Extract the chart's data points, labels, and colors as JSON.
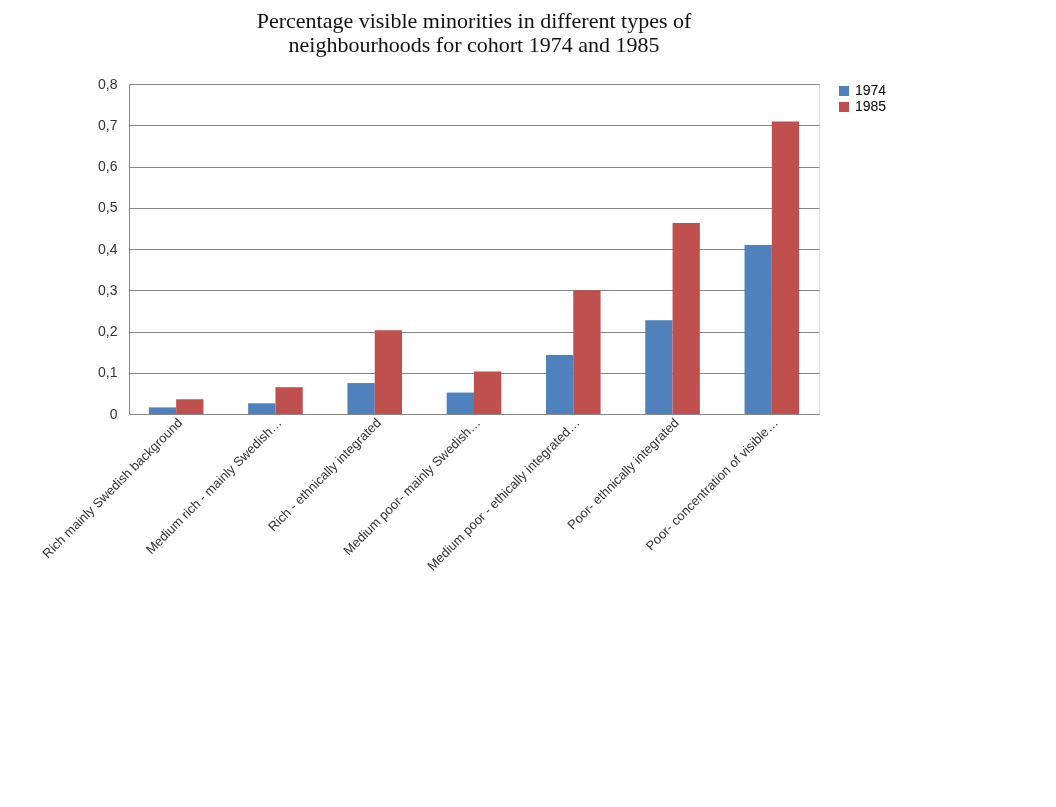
{
  "chart_data": {
    "type": "bar",
    "title": [
      "Percentage visible minorities in different types of",
      "neighbourhoods for cohort 1974 and 1985"
    ],
    "categories": [
      "Rich mainly Swedish background",
      "Medium rich - mainly Swedish…",
      "Rich - ethnically integrated",
      "Medium poor- mainly Swedish…",
      "Medium poor - ethically integrated…",
      "Poor- ethnically integrated",
      "Poor- concentration of visible…"
    ],
    "series": [
      {
        "name": "1974",
        "color": "#4f81bd",
        "values": [
          0.016,
          0.026,
          0.075,
          0.052,
          0.143,
          0.227,
          0.41
        ]
      },
      {
        "name": "1985",
        "color": "#c0504d",
        "values": [
          0.036,
          0.065,
          0.203,
          0.103,
          0.3,
          0.463,
          0.709
        ]
      }
    ],
    "ylim": [
      0,
      0.8
    ],
    "yticks": [
      0,
      {
        "value": 0.1,
        "label": "0,1"
      },
      {
        "value": 0.2,
        "label": "0,2"
      },
      {
        "value": 0.3,
        "label": "0,3"
      },
      {
        "value": 0.4,
        "label": "0,4"
      },
      {
        "value": 0.5,
        "label": "0,5"
      },
      {
        "value": 0.6,
        "label": "0,6"
      },
      {
        "value": 0.7,
        "label": "0,7"
      },
      {
        "value": 0.8,
        "label": "0,8"
      }
    ],
    "grid": "y",
    "legend": "right"
  }
}
